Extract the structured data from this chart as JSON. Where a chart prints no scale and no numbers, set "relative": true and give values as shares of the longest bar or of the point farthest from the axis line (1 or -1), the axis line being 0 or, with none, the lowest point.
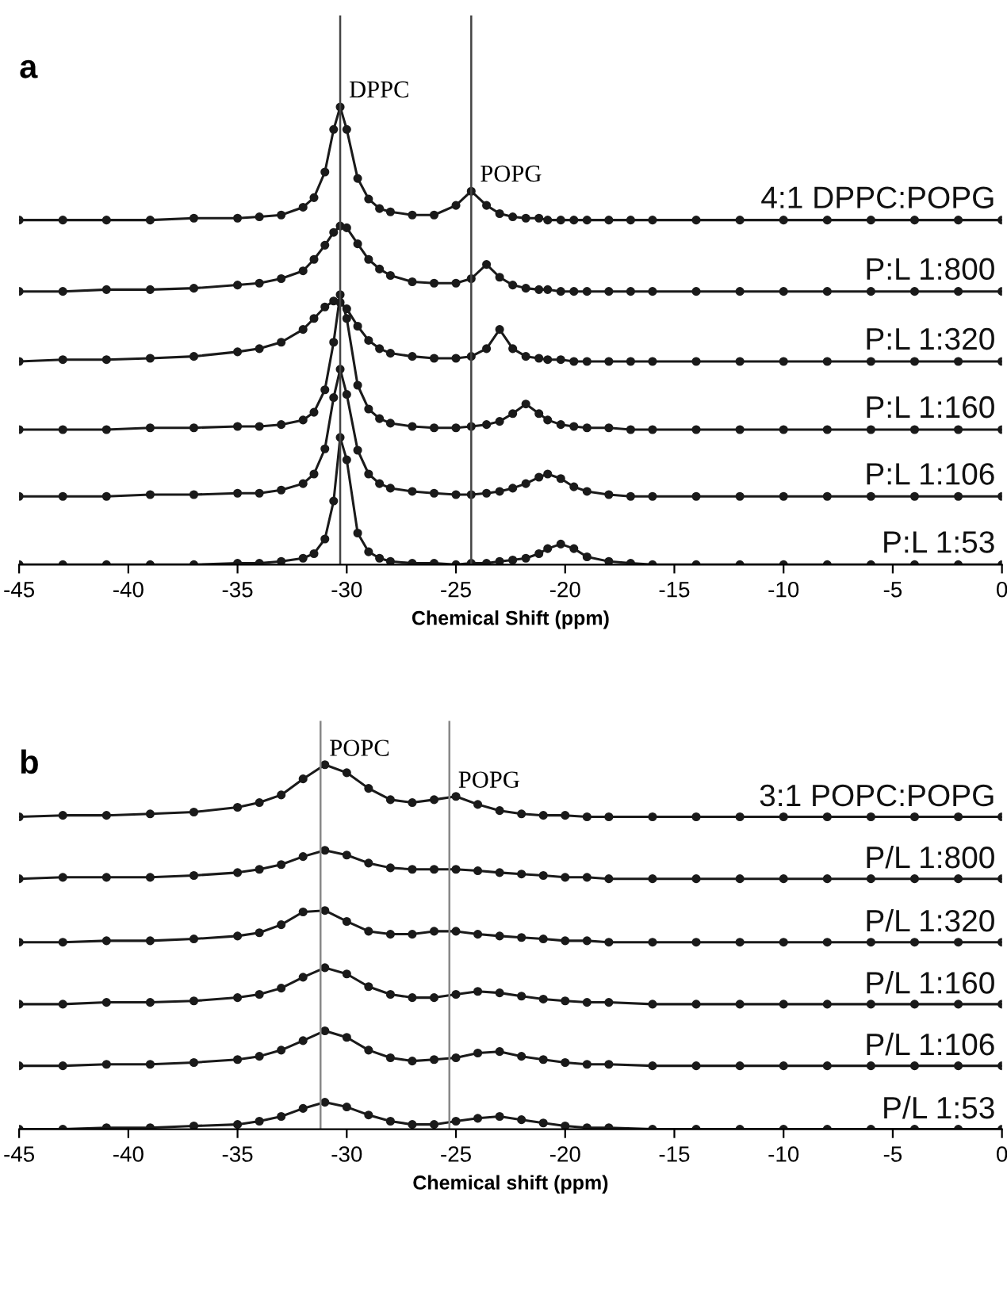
{
  "chart_data": [
    {
      "type": "line",
      "title": "a",
      "xlabel": "Chemical Shift (ppm)",
      "relative": true,
      "marker": "circle",
      "line_style": "solid",
      "tick_labels": "x",
      "grid": false,
      "legend": false,
      "xlim": [
        -45,
        0
      ],
      "xticks": [
        -45,
        -40,
        -35,
        -30,
        -25,
        -20,
        -15,
        -10,
        -5,
        0
      ],
      "x": [
        -45,
        -43,
        -41,
        -39,
        -37,
        -35,
        -34,
        -33,
        -32,
        -31.5,
        -31,
        -30.6,
        -30.3,
        -30,
        -29.5,
        -29,
        -28.5,
        -28,
        -27,
        -26,
        -25,
        -24.3,
        -23.6,
        -23,
        -22.4,
        -21.8,
        -21.2,
        -20.8,
        -20.2,
        -19.6,
        -19,
        -18,
        -17,
        -16,
        -14,
        -12,
        -10,
        -8,
        -6,
        -4,
        -2,
        0
      ],
      "ref_lines": [
        {
          "axis": "x",
          "value": -30.3,
          "label": "DPPC",
          "color": "#444444"
        },
        {
          "axis": "x",
          "value": -24.3,
          "label": "POPG",
          "color": "#444444"
        }
      ],
      "series": [
        {
          "name": "4:1 DPPC:POPG",
          "color": "#1a1a1a",
          "values": [
            0.753,
            0.753,
            0.753,
            0.753,
            0.757,
            0.757,
            0.76,
            0.764,
            0.781,
            0.802,
            0.858,
            0.951,
            1.0,
            0.951,
            0.844,
            0.799,
            0.778,
            0.771,
            0.764,
            0.764,
            0.785,
            0.816,
            0.785,
            0.767,
            0.76,
            0.757,
            0.757,
            0.753,
            0.753,
            0.753,
            0.753,
            0.753,
            0.753,
            0.753,
            0.753,
            0.753,
            0.753,
            0.753,
            0.753,
            0.753,
            0.753,
            0.753
          ]
        },
        {
          "name": "P:L 1:800",
          "color": "#1a1a1a",
          "values": [
            0.597,
            0.597,
            0.601,
            0.601,
            0.604,
            0.611,
            0.615,
            0.625,
            0.642,
            0.667,
            0.698,
            0.726,
            0.74,
            0.736,
            0.701,
            0.667,
            0.646,
            0.632,
            0.618,
            0.615,
            0.615,
            0.625,
            0.656,
            0.628,
            0.611,
            0.604,
            0.601,
            0.601,
            0.597,
            0.597,
            0.597,
            0.597,
            0.597,
            0.597,
            0.597,
            0.597,
            0.597,
            0.597,
            0.597,
            0.597,
            0.597,
            0.597
          ]
        },
        {
          "name": "P:L 1:320",
          "color": "#1a1a1a",
          "values": [
            0.444,
            0.448,
            0.448,
            0.451,
            0.455,
            0.465,
            0.472,
            0.486,
            0.514,
            0.538,
            0.563,
            0.576,
            0.573,
            0.559,
            0.521,
            0.49,
            0.472,
            0.462,
            0.455,
            0.451,
            0.451,
            0.455,
            0.472,
            0.514,
            0.472,
            0.455,
            0.451,
            0.448,
            0.448,
            0.444,
            0.444,
            0.444,
            0.444,
            0.444,
            0.444,
            0.444,
            0.444,
            0.444,
            0.444,
            0.444,
            0.444,
            0.444
          ]
        },
        {
          "name": "P:L 1:160",
          "color": "#1a1a1a",
          "values": [
            0.295,
            0.295,
            0.295,
            0.299,
            0.299,
            0.302,
            0.302,
            0.306,
            0.316,
            0.333,
            0.382,
            0.486,
            0.59,
            0.538,
            0.392,
            0.34,
            0.319,
            0.309,
            0.302,
            0.299,
            0.299,
            0.302,
            0.306,
            0.313,
            0.33,
            0.351,
            0.33,
            0.316,
            0.306,
            0.302,
            0.299,
            0.299,
            0.295,
            0.295,
            0.295,
            0.295,
            0.295,
            0.295,
            0.295,
            0.295,
            0.295,
            0.295
          ]
        },
        {
          "name": "P:L 1:106",
          "color": "#1a1a1a",
          "values": [
            0.149,
            0.149,
            0.149,
            0.153,
            0.153,
            0.156,
            0.156,
            0.163,
            0.177,
            0.198,
            0.253,
            0.365,
            0.427,
            0.372,
            0.25,
            0.198,
            0.177,
            0.167,
            0.16,
            0.156,
            0.153,
            0.153,
            0.156,
            0.16,
            0.167,
            0.177,
            0.191,
            0.198,
            0.188,
            0.17,
            0.16,
            0.153,
            0.149,
            0.149,
            0.149,
            0.149,
            0.149,
            0.149,
            0.149,
            0.149,
            0.149,
            0.149
          ]
        },
        {
          "name": "P:L 1:53",
          "color": "#1a1a1a",
          "values": [
            0,
            0,
            0,
            0,
            0,
            0.003,
            0.003,
            0.007,
            0.014,
            0.024,
            0.056,
            0.139,
            0.278,
            0.229,
            0.069,
            0.028,
            0.014,
            0.007,
            0.003,
            0.003,
            0,
            0.003,
            0.003,
            0.007,
            0.01,
            0.014,
            0.024,
            0.035,
            0.045,
            0.035,
            0.017,
            0.007,
            0.003,
            0,
            0,
            0,
            0,
            0,
            0,
            0,
            0,
            0
          ]
        }
      ]
    },
    {
      "type": "line",
      "title": "b",
      "xlabel": "Chemical shift (ppm)",
      "relative": true,
      "marker": "circle",
      "line_style": "solid",
      "tick_labels": "x",
      "grid": false,
      "legend": false,
      "xlim": [
        -45,
        0
      ],
      "xticks": [
        -45,
        -40,
        -35,
        -30,
        -25,
        -20,
        -15,
        -10,
        -5,
        0
      ],
      "x": [
        -45,
        -43,
        -41,
        -39,
        -37,
        -35,
        -34,
        -33,
        -32,
        -31,
        -30,
        -29,
        -28,
        -27,
        -26,
        -25,
        -24,
        -23,
        -22,
        -21,
        -20,
        -19,
        -18,
        -16,
        -14,
        -12,
        -10,
        -8,
        -6,
        -4,
        -2,
        0
      ],
      "ref_lines": [
        {
          "axis": "x",
          "value": -31.2,
          "label": "POPC",
          "color": "#888888"
        },
        {
          "axis": "x",
          "value": -25.3,
          "label": "POPG",
          "color": "#888888"
        }
      ],
      "series": [
        {
          "name": "3:1 POPC:POPG",
          "color": "#1a1a1a",
          "values": [
            0.857,
            0.861,
            0.861,
            0.865,
            0.87,
            0.883,
            0.896,
            0.917,
            0.961,
            1.0,
            0.978,
            0.935,
            0.904,
            0.896,
            0.904,
            0.913,
            0.891,
            0.874,
            0.865,
            0.861,
            0.861,
            0.857,
            0.857,
            0.857,
            0.857,
            0.857,
            0.857,
            0.857,
            0.857,
            0.857,
            0.857,
            0.857
          ]
        },
        {
          "name": "P/L 1:800",
          "color": "#1a1a1a",
          "values": [
            0.687,
            0.691,
            0.691,
            0.691,
            0.696,
            0.704,
            0.713,
            0.726,
            0.748,
            0.765,
            0.752,
            0.73,
            0.717,
            0.713,
            0.713,
            0.713,
            0.709,
            0.704,
            0.7,
            0.696,
            0.691,
            0.691,
            0.687,
            0.687,
            0.687,
            0.687,
            0.687,
            0.687,
            0.687,
            0.687,
            0.687,
            0.687
          ]
        },
        {
          "name": "P/L 1:320",
          "color": "#1a1a1a",
          "values": [
            0.513,
            0.513,
            0.517,
            0.517,
            0.522,
            0.53,
            0.539,
            0.561,
            0.596,
            0.6,
            0.57,
            0.543,
            0.535,
            0.535,
            0.543,
            0.543,
            0.535,
            0.53,
            0.526,
            0.522,
            0.517,
            0.517,
            0.513,
            0.513,
            0.513,
            0.513,
            0.513,
            0.513,
            0.513,
            0.513,
            0.513,
            0.513
          ]
        },
        {
          "name": "P/L 1:160",
          "color": "#1a1a1a",
          "values": [
            0.343,
            0.343,
            0.348,
            0.348,
            0.352,
            0.361,
            0.37,
            0.387,
            0.417,
            0.443,
            0.426,
            0.391,
            0.37,
            0.361,
            0.361,
            0.37,
            0.378,
            0.374,
            0.365,
            0.357,
            0.352,
            0.348,
            0.348,
            0.343,
            0.343,
            0.343,
            0.343,
            0.343,
            0.343,
            0.343,
            0.343,
            0.343
          ]
        },
        {
          "name": "P/L 1:106",
          "color": "#1a1a1a",
          "values": [
            0.174,
            0.174,
            0.178,
            0.178,
            0.183,
            0.191,
            0.2,
            0.217,
            0.243,
            0.27,
            0.252,
            0.217,
            0.196,
            0.187,
            0.191,
            0.196,
            0.209,
            0.213,
            0.2,
            0.191,
            0.183,
            0.178,
            0.178,
            0.174,
            0.174,
            0.174,
            0.174,
            0.174,
            0.174,
            0.174,
            0.174,
            0.174
          ]
        },
        {
          "name": "P/L 1:53",
          "color": "#1a1a1a",
          "values": [
            0,
            0,
            0.004,
            0.004,
            0.009,
            0.013,
            0.022,
            0.035,
            0.057,
            0.074,
            0.061,
            0.039,
            0.022,
            0.013,
            0.013,
            0.022,
            0.03,
            0.035,
            0.026,
            0.017,
            0.009,
            0.004,
            0.004,
            0,
            0,
            0,
            0,
            0,
            0,
            0,
            0,
            0
          ]
        }
      ]
    }
  ]
}
